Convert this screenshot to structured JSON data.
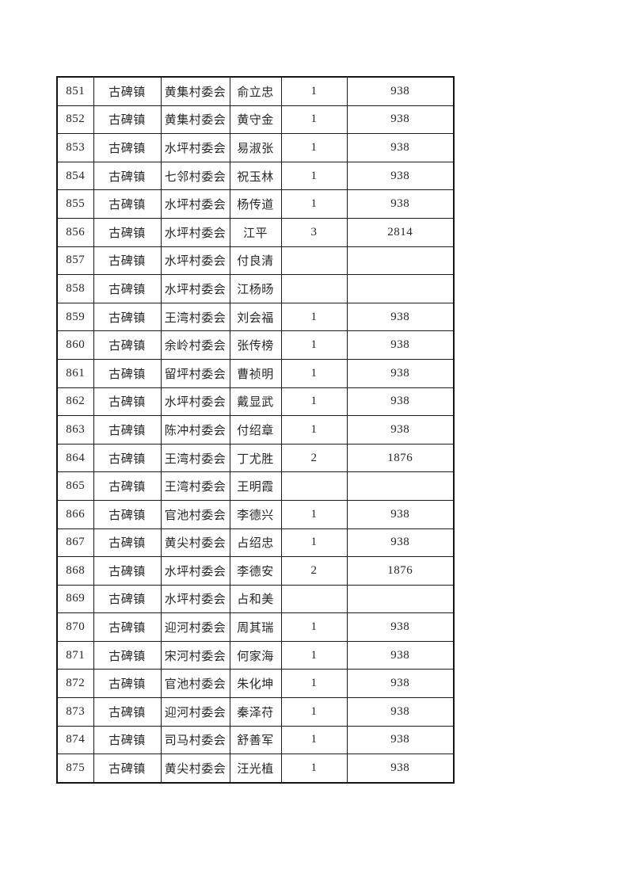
{
  "page": {
    "background_color": "#ffffff",
    "table_border_color": "#1c1c1c",
    "text_color": "#262626"
  },
  "table": {
    "column_keys": [
      "serial-number",
      "town",
      "village-committee",
      "person-name",
      "count",
      "amount"
    ],
    "rows": [
      [
        "851",
        "古碑镇",
        "黄集村委会",
        "俞立忠",
        "1",
        "938"
      ],
      [
        "852",
        "古碑镇",
        "黄集村委会",
        "黄守金",
        "1",
        "938"
      ],
      [
        "853",
        "古碑镇",
        "水坪村委会",
        "易淑张",
        "1",
        "938"
      ],
      [
        "854",
        "古碑镇",
        "七邻村委会",
        "祝玉林",
        "1",
        "938"
      ],
      [
        "855",
        "古碑镇",
        "水坪村委会",
        "杨传道",
        "1",
        "938"
      ],
      [
        "856",
        "古碑镇",
        "水坪村委会",
        "江平",
        "3",
        "2814"
      ],
      [
        "857",
        "古碑镇",
        "水坪村委会",
        "付良清",
        "",
        ""
      ],
      [
        "858",
        "古碑镇",
        "水坪村委会",
        "江杨旸",
        "",
        ""
      ],
      [
        "859",
        "古碑镇",
        "王湾村委会",
        "刘会福",
        "1",
        "938"
      ],
      [
        "860",
        "古碑镇",
        "余岭村委会",
        "张传榜",
        "1",
        "938"
      ],
      [
        "861",
        "古碑镇",
        "留坪村委会",
        "曹祯明",
        "1",
        "938"
      ],
      [
        "862",
        "古碑镇",
        "水坪村委会",
        "戴显武",
        "1",
        "938"
      ],
      [
        "863",
        "古碑镇",
        "陈冲村委会",
        "付绍章",
        "1",
        "938"
      ],
      [
        "864",
        "古碑镇",
        "王湾村委会",
        "丁尤胜",
        "2",
        "1876"
      ],
      [
        "865",
        "古碑镇",
        "王湾村委会",
        "王明霞",
        "",
        ""
      ],
      [
        "866",
        "古碑镇",
        "官池村委会",
        "李德兴",
        "1",
        "938"
      ],
      [
        "867",
        "古碑镇",
        "黄尖村委会",
        "占绍忠",
        "1",
        "938"
      ],
      [
        "868",
        "古碑镇",
        "水坪村委会",
        "李德安",
        "2",
        "1876"
      ],
      [
        "869",
        "古碑镇",
        "水坪村委会",
        "占和美",
        "",
        ""
      ],
      [
        "870",
        "古碑镇",
        "迎河村委会",
        "周其瑞",
        "1",
        "938"
      ],
      [
        "871",
        "古碑镇",
        "宋河村委会",
        "何家海",
        "1",
        "938"
      ],
      [
        "872",
        "古碑镇",
        "官池村委会",
        "朱化坤",
        "1",
        "938"
      ],
      [
        "873",
        "古碑镇",
        "迎河村委会",
        "秦泽苻",
        "1",
        "938"
      ],
      [
        "874",
        "古碑镇",
        "司马村委会",
        "舒善军",
        "1",
        "938"
      ],
      [
        "875",
        "古碑镇",
        "黄尖村委会",
        "汪光植",
        "1",
        "938"
      ]
    ]
  }
}
